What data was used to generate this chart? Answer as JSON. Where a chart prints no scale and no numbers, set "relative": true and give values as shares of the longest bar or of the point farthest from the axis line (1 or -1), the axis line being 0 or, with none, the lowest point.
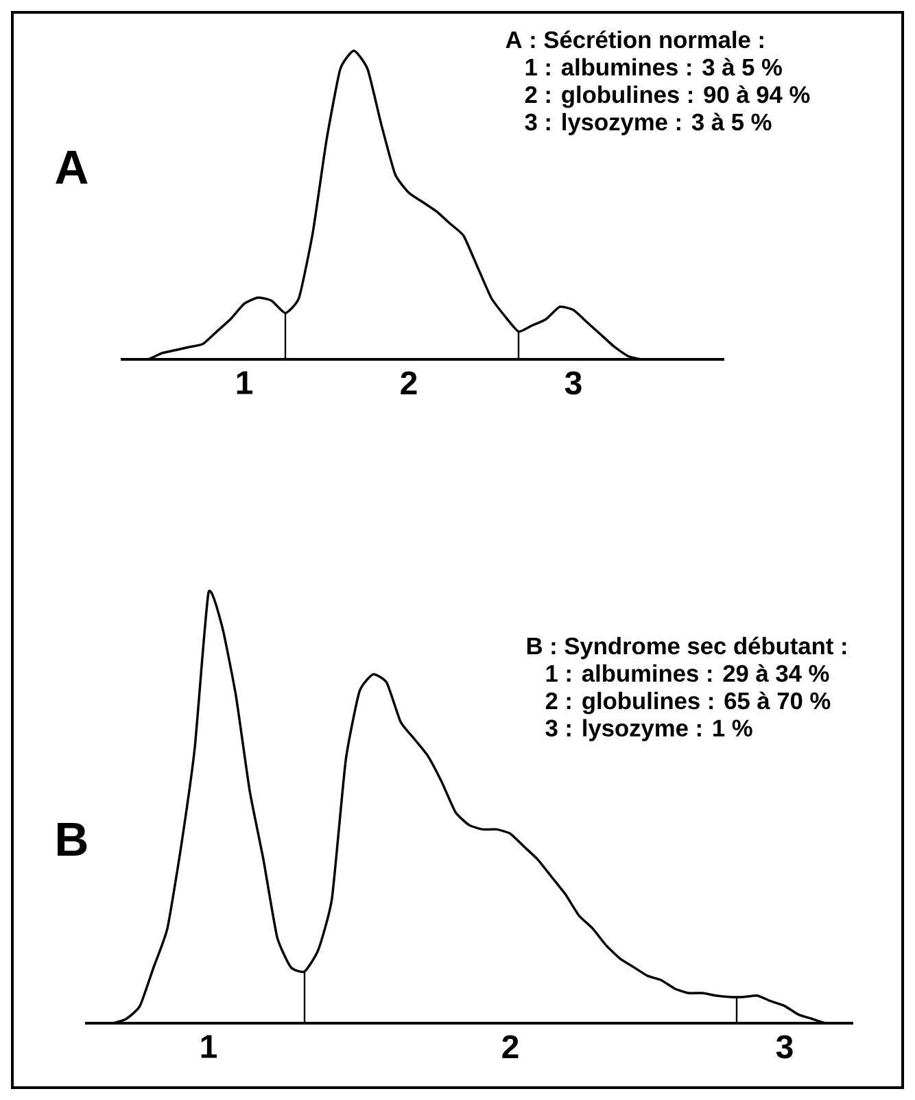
{
  "chart_data": [
    {
      "type": "line",
      "relative": true,
      "title": "A",
      "color": "#000000",
      "categories": [
        null,
        null,
        null,
        null,
        null,
        null,
        null,
        null,
        null,
        "1",
        null,
        null,
        null,
        null,
        null,
        null,
        null,
        null,
        null,
        null,
        null,
        "2",
        null,
        null,
        null,
        null,
        null,
        null,
        null,
        null,
        null,
        null,
        null,
        "3",
        null,
        null,
        null,
        null,
        null,
        null,
        null,
        null,
        null,
        null,
        null
      ],
      "values": [
        0,
        0,
        0,
        0.02,
        0.03,
        0.04,
        0.05,
        0.09,
        0.13,
        0.18,
        0.2,
        0.19,
        0.15,
        0.2,
        0.41,
        0.71,
        0.94,
        1,
        0.94,
        0.76,
        0.6,
        0.54,
        0.51,
        0.48,
        0.44,
        0.4,
        0.3,
        0.2,
        0.14,
        0.09,
        0.11,
        0.13,
        0.17,
        0.16,
        0.12,
        0.08,
        0.04,
        0.01,
        0,
        0,
        0,
        0,
        0,
        0,
        0
      ],
      "annotations": [
        "A : Sécrétion normale :",
        "1 : albumines : 3 à 5 %",
        "2 : globulines : 90 à 94 %",
        "3 : lysozyme   : 3 à 5 %"
      ]
    },
    {
      "type": "line",
      "relative": true,
      "title": "B",
      "color": "#000000",
      "categories": [
        null,
        null,
        null,
        null,
        null,
        null,
        null,
        null,
        null,
        "1",
        null,
        null,
        null,
        null,
        null,
        null,
        null,
        null,
        null,
        null,
        null,
        null,
        null,
        null,
        null,
        null,
        null,
        null,
        null,
        null,
        null,
        "2",
        null,
        null,
        null,
        null,
        null,
        null,
        null,
        null,
        null,
        null,
        null,
        null,
        null,
        null,
        null,
        null,
        null,
        null,
        null,
        "3",
        null,
        null,
        null,
        null,
        null
      ],
      "values": [
        0,
        0,
        0,
        0.01,
        0.04,
        0.13,
        0.22,
        0.41,
        0.64,
        1,
        0.92,
        0.76,
        0.54,
        0.38,
        0.2,
        0.13,
        0.12,
        0.17,
        0.29,
        0.61,
        0.77,
        0.81,
        0.79,
        0.7,
        0.66,
        0.62,
        0.56,
        0.49,
        0.46,
        0.45,
        0.45,
        0.44,
        0.41,
        0.38,
        0.34,
        0.3,
        0.25,
        0.22,
        0.18,
        0.15,
        0.13,
        0.11,
        0.1,
        0.08,
        0.07,
        0.07,
        0.064,
        0.061,
        0.061,
        0.064,
        0.051,
        0.04,
        0.02,
        0.01,
        0,
        0,
        0
      ],
      "annotations": [
        "B : Syndrome sec débutant :",
        "1 : albumines : 29 à 34 %",
        "2 : globulines : 65 à 70 %",
        "3 : lysozyme   : 1 %"
      ]
    }
  ]
}
